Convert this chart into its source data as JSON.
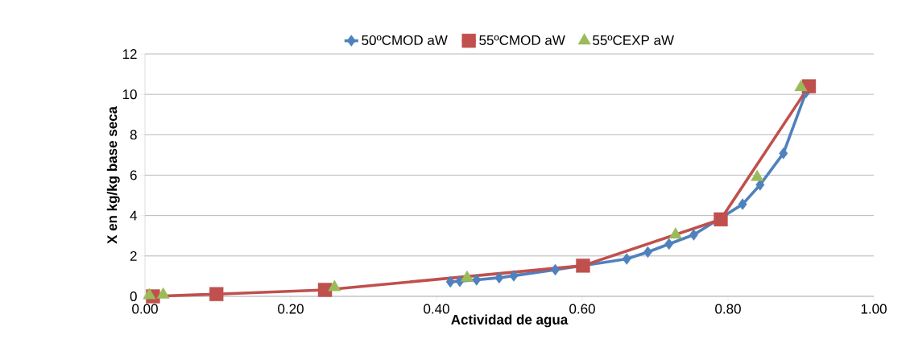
{
  "chart_data": {
    "type": "line",
    "xlabel": "Actividad de agua",
    "ylabel": "X en kg/kg base seca",
    "series": [
      {
        "name": "50ºCMOD aW",
        "marker": "diamond",
        "color": "#4f81bd",
        "x": [
          0.419,
          0.432,
          0.455,
          0.486,
          0.506,
          0.563,
          0.661,
          0.69,
          0.719,
          0.753,
          0.82,
          0.844,
          0.876,
          0.907
        ],
        "values": [
          0.72,
          0.75,
          0.82,
          0.92,
          1.02,
          1.32,
          1.85,
          2.19,
          2.59,
          3.05,
          4.56,
          5.52,
          7.08,
          10.1
        ]
      },
      {
        "name": "55ºCMOD aW",
        "marker": "square",
        "color": "#c0504d",
        "x": [
          0.011,
          0.098,
          0.247,
          0.601,
          0.79,
          0.911
        ],
        "values": [
          0.0,
          0.11,
          0.32,
          1.52,
          3.81,
          10.4
        ]
      },
      {
        "name": "55ºCEXP aW",
        "type": "scatter",
        "marker": "triangle",
        "color": "#9bbb59",
        "x": [
          0.006,
          0.025,
          0.26,
          0.442,
          0.728,
          0.84,
          0.9
        ],
        "values": [
          0.05,
          0.08,
          0.45,
          0.92,
          3.05,
          5.9,
          10.35
        ]
      }
    ],
    "xlim": [
      0,
      1
    ],
    "ylim": [
      0,
      12
    ],
    "xticks": [
      {
        "value": 0,
        "label": "0.00"
      },
      {
        "value": 0.2,
        "label": "0.20"
      },
      {
        "value": 0.4,
        "label": "0.40"
      },
      {
        "value": 0.6,
        "label": "0.60"
      },
      {
        "value": 0.8,
        "label": "0.80"
      },
      {
        "value": 1,
        "label": "1.00"
      }
    ],
    "yticks": [
      0,
      2,
      4,
      6,
      8,
      10,
      12
    ],
    "grid": "y",
    "legend": "top"
  }
}
